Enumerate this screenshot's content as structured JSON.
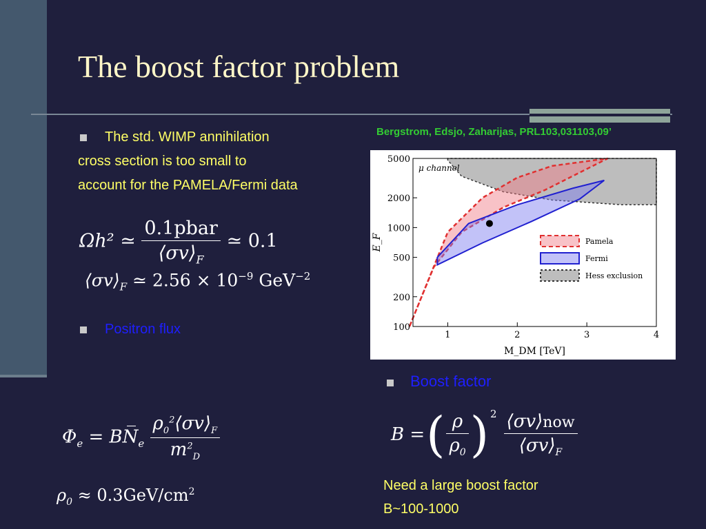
{
  "slide": {
    "title": "The boost factor problem",
    "citation": "Bergstrom, Edsjo, Zaharijas, PRL103,031103,09’",
    "bullet1": {
      "line1": "The std. WIMP annihilation",
      "line2": "cross section is too small to",
      "line3": "account for the  PAMELA/Fermi data"
    },
    "bullet2": "Positron flux",
    "bullet3": "Boost factor",
    "conclusion": {
      "line1": "Need a large boost factor",
      "line2": "B~100-1000"
    },
    "equations": {
      "omega_lhs": "Ωh² ≃",
      "omega_num": "0.1pbar",
      "omega_den": "⟨σv⟩",
      "omega_den_sub": "F",
      "omega_rhs": "≃ 0.1",
      "sigma_line": "⟨σv⟩",
      "sigma_sub": "F",
      "sigma_rhs": "≃ 2.56 × 10",
      "sigma_exp": "−9",
      "sigma_unit": "GeV",
      "sigma_unit_exp": "−2",
      "phi_lhs": "Φ",
      "phi_sub": "e",
      "phi_mid": "= BN̅",
      "phi_mid_sub": "e",
      "phi_num": "ρ",
      "phi_num_rest": "⟨σv⟩",
      "phi_num_sub": "F",
      "phi_den": "m",
      "phi_den_sub": "D",
      "rho_lhs": "ρ",
      "rho_sub": "0",
      "rho_rhs": "≈ 0.3GeV/cm",
      "rho_exp": "2",
      "b_lhs": "B =",
      "b_frac_num": "ρ",
      "b_frac_den": "ρ",
      "b_frac_den_sub": "0",
      "b_exp": "2",
      "b_num": "⟨σv⟩",
      "b_num_sub": "now",
      "b_den": "⟨σv⟩",
      "b_den_sub": "F"
    }
  },
  "chart_data": {
    "type": "area",
    "title": "",
    "panel_label": "μ channel",
    "xlabel": "M_DM [TeV]",
    "ylabel": "E_F",
    "xlim": [
      0.5,
      4
    ],
    "ylim": [
      100,
      5000
    ],
    "yscale": "log",
    "xticks": [
      "1",
      "2",
      "3",
      "4"
    ],
    "yticks": [
      "100",
      "200",
      "500",
      "1000",
      "2000",
      "5000"
    ],
    "legend_position": "right",
    "series": [
      {
        "name": "Pamela",
        "style": "dashed-red",
        "upper": [
          [
            0.45,
            100
          ],
          [
            1.0,
            900
          ],
          [
            1.5,
            2000
          ],
          [
            2.0,
            3200
          ],
          [
            2.5,
            4200
          ],
          [
            3.3,
            5000
          ]
        ],
        "lower": [
          [
            0.45,
            100
          ],
          [
            0.8,
            400
          ],
          [
            1.2,
            900
          ],
          [
            1.8,
            1600
          ],
          [
            2.4,
            2400
          ],
          [
            3.3,
            5000
          ]
        ]
      },
      {
        "name": "Fermi",
        "style": "solid-blue",
        "upper": [
          [
            0.85,
            500
          ],
          [
            1.3,
            1100
          ],
          [
            2.0,
            1700
          ],
          [
            2.8,
            2500
          ],
          [
            3.25,
            3000
          ]
        ],
        "lower": [
          [
            0.85,
            420
          ],
          [
            1.5,
            700
          ],
          [
            2.2,
            1150
          ],
          [
            2.9,
            1950
          ],
          [
            3.25,
            3000
          ]
        ]
      },
      {
        "name": "Hess exclusion",
        "style": "dashed-black",
        "boundary": [
          [
            1.0,
            4800
          ],
          [
            1.2,
            3300
          ],
          [
            1.8,
            2300
          ],
          [
            2.5,
            1900
          ],
          [
            3.5,
            1700
          ],
          [
            4.0,
            1700
          ]
        ]
      }
    ],
    "marker": [
      1.6,
      1100
    ],
    "colors": {
      "pamela": "#e03030",
      "fermi": "#2020d0",
      "hess": "#999999"
    }
  }
}
